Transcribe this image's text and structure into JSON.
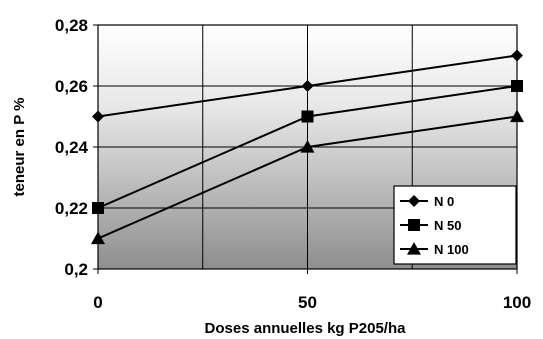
{
  "chart_data": {
    "type": "line",
    "title": "",
    "xlabel": "Doses annuelles kg P205/ha",
    "ylabel": "teneur en P %",
    "x": [
      0,
      50,
      100
    ],
    "x_tick_labels": [
      "0",
      "50",
      "100"
    ],
    "y_tick_labels": [
      "0,2",
      "0,22",
      "0,24",
      "0,26",
      "0,28"
    ],
    "xlim": [
      0,
      100
    ],
    "ylim": [
      0.2,
      0.28
    ],
    "grid": true,
    "legend_position": "bottom-right",
    "background": "gray gradient (light top, dark bottom)",
    "series": [
      {
        "name": "N 0",
        "marker": "diamond",
        "values": [
          0.25,
          0.26,
          0.27
        ]
      },
      {
        "name": "N 50",
        "marker": "square",
        "values": [
          0.22,
          0.25,
          0.26
        ]
      },
      {
        "name": "N 100",
        "marker": "triangle",
        "values": [
          0.21,
          0.24,
          0.25
        ]
      }
    ],
    "colors": {
      "line": "#000000",
      "grid": "#000000"
    }
  }
}
